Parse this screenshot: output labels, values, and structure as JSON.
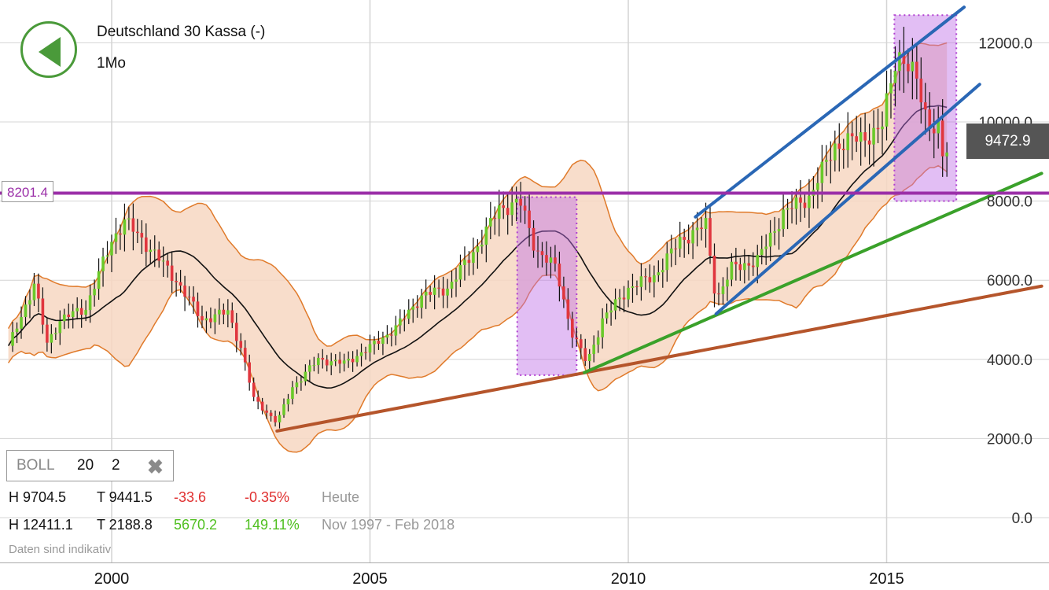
{
  "header": {
    "back_label": "Zurück",
    "instrument": "Deutschland 30 Kassa (-)",
    "period": "1Mo"
  },
  "horizontal_line": {
    "label": "8201.4",
    "value": 8201.4,
    "color": "#9b2fa8"
  },
  "current_price": "9472.9",
  "indicator": {
    "name": "BOLL",
    "period": "20",
    "stddev": "2"
  },
  "stats": {
    "today": {
      "high": "H 9704.5",
      "low": "T 9441.5",
      "change": "-33.6",
      "change_pct": "-0.35%",
      "label": "Heute"
    },
    "range": {
      "high": "H 12411.1",
      "low": "T 2188.8",
      "change": "5670.2",
      "change_pct": "149.11%",
      "label": "Nov 1997 - Feb 2018"
    }
  },
  "disclaimer": "Daten sind indikativ",
  "colors": {
    "up": "#6ac92a",
    "down": "#e0363e",
    "band_fill": "#f7d7c2",
    "band_line": "#e07a2a",
    "mid": "#111111"
  },
  "chart_data": {
    "type": "candlestick",
    "y_ticks": [
      "0.0",
      "2000.0",
      "4000.0",
      "6000.0",
      "8000.0",
      "10000.0",
      "12000.0"
    ],
    "x_ticks": [
      "2000",
      "2005",
      "2010",
      "2015"
    ],
    "ylim": [
      0,
      12500
    ],
    "x_range": [
      "1998-01",
      "2018-02"
    ],
    "grid": true,
    "anchors": [
      {
        "t": 1998.0,
        "v": 4300
      },
      {
        "t": 1998.5,
        "v": 5900
      },
      {
        "t": 1998.75,
        "v": 4400
      },
      {
        "t": 1999.0,
        "v": 5000
      },
      {
        "t": 1999.5,
        "v": 5300
      },
      {
        "t": 2000.0,
        "v": 7000
      },
      {
        "t": 2000.25,
        "v": 7500
      },
      {
        "t": 2000.75,
        "v": 6800
      },
      {
        "t": 2001.25,
        "v": 6000
      },
      {
        "t": 2001.75,
        "v": 5000
      },
      {
        "t": 2002.25,
        "v": 5200
      },
      {
        "t": 2002.5,
        "v": 4300
      },
      {
        "t": 2002.75,
        "v": 3000
      },
      {
        "t": 2003.2,
        "v": 2400
      },
      {
        "t": 2003.5,
        "v": 3300
      },
      {
        "t": 2004.0,
        "v": 4000
      },
      {
        "t": 2004.5,
        "v": 3900
      },
      {
        "t": 2005.0,
        "v": 4300
      },
      {
        "t": 2005.5,
        "v": 4800
      },
      {
        "t": 2006.0,
        "v": 5600
      },
      {
        "t": 2006.5,
        "v": 5800
      },
      {
        "t": 2007.0,
        "v": 6700
      },
      {
        "t": 2007.5,
        "v": 7800
      },
      {
        "t": 2007.9,
        "v": 8000
      },
      {
        "t": 2008.2,
        "v": 6800
      },
      {
        "t": 2008.6,
        "v": 6300
      },
      {
        "t": 2008.9,
        "v": 4700
      },
      {
        "t": 2009.2,
        "v": 3900
      },
      {
        "t": 2009.5,
        "v": 5000
      },
      {
        "t": 2010.0,
        "v": 5800
      },
      {
        "t": 2010.5,
        "v": 6100
      },
      {
        "t": 2011.0,
        "v": 7000
      },
      {
        "t": 2011.5,
        "v": 7400
      },
      {
        "t": 2011.7,
        "v": 5500
      },
      {
        "t": 2012.0,
        "v": 6300
      },
      {
        "t": 2012.5,
        "v": 6500
      },
      {
        "t": 2013.0,
        "v": 7700
      },
      {
        "t": 2013.5,
        "v": 8100
      },
      {
        "t": 2014.0,
        "v": 9400
      },
      {
        "t": 2014.5,
        "v": 9600
      },
      {
        "t": 2014.9,
        "v": 9800
      },
      {
        "t": 2015.2,
        "v": 11800
      },
      {
        "t": 2015.6,
        "v": 11000
      },
      {
        "t": 2015.8,
        "v": 10000
      },
      {
        "t": 2016.0,
        "v": 9800
      },
      {
        "t": 2016.1,
        "v": 8900
      },
      {
        "t": 2016.2,
        "v": 9472.9
      }
    ],
    "trend_lines": [
      {
        "color": "#b5552b",
        "points": [
          [
            2003.2,
            2188.8
          ],
          [
            2018.0,
            5850
          ]
        ]
      },
      {
        "color": "#3aa12a",
        "points": [
          [
            2009.15,
            3666
          ],
          [
            2018.0,
            8700
          ]
        ]
      },
      {
        "color": "#2a67b5",
        "points": [
          [
            2011.3,
            7600
          ],
          [
            2016.5,
            12900
          ]
        ]
      },
      {
        "color": "#2a67b5",
        "points": [
          [
            2011.7,
            5150
          ],
          [
            2016.8,
            10950
          ]
        ]
      }
    ],
    "highlight_boxes": [
      {
        "x0": 2007.85,
        "x1": 2009.0,
        "y0": 3600,
        "y1": 8100
      },
      {
        "x0": 2015.15,
        "x1": 2016.35,
        "y0": 8000,
        "y1": 12700
      }
    ]
  }
}
